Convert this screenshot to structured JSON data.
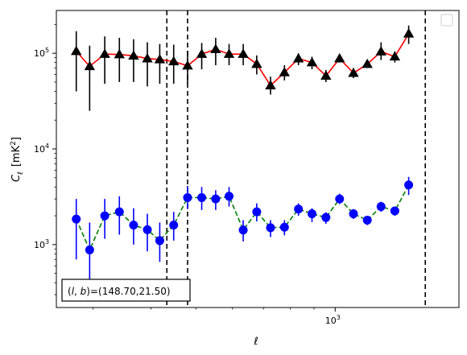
{
  "chart_data": {
    "type": "scatter",
    "xlabel": "ℓ",
    "ylabel_main": "C",
    "ylabel_sub": "ℓ",
    "ylabel_unit": "[mK",
    "ylabel_unit_sup": "2",
    "ylabel_unit_close": "]",
    "xscale": "log",
    "yscale": "log",
    "xlim": [
      250,
      1850
    ],
    "ylim": [
      220,
      280000
    ],
    "x_ticks": [
      {
        "value": 1000,
        "label": "10",
        "sup": "3"
      }
    ],
    "y_ticks": [
      {
        "value": 1000,
        "label": "10",
        "sup": "3"
      },
      {
        "value": 10000,
        "label": "10",
        "sup": "4"
      },
      {
        "value": 100000,
        "label": "10",
        "sup": "5"
      }
    ],
    "grid": false,
    "legend": "top-right (empty)",
    "vlines": [
      433,
      480,
      1565
    ],
    "x": [
      276,
      295,
      318,
      342,
      367,
      393,
      418,
      448,
      480,
      515,
      552,
      590,
      633,
      677,
      725,
      777,
      833,
      891,
      955,
      1022,
      1095,
      1173,
      1256,
      1345,
      1441,
      1543,
      1652,
      1770
    ],
    "series": [
      {
        "color": "#000000",
        "marker": "triangle",
        "line_color": "#ff0000",
        "line_style": "solid",
        "values": [
          105000,
          73000,
          98000,
          97000,
          94000,
          88000,
          86000,
          82000,
          74000,
          98000,
          110000,
          98000,
          98000,
          77000,
          46000,
          63000,
          88000,
          80000,
          58000,
          88000,
          62000,
          77000,
          104000,
          92000,
          160000
        ],
        "x_index_start": 0,
        "err_low": [
          40000,
          25000,
          48000,
          50000,
          50000,
          45000,
          48000,
          48000,
          48000,
          68000,
          75000,
          75000,
          75000,
          60000,
          37000,
          52000,
          75000,
          68000,
          50000,
          80000,
          55000,
          70000,
          85000,
          80000,
          125000
        ],
        "err_high": [
          170000,
          120000,
          150000,
          145000,
          140000,
          130000,
          125000,
          123000,
          105000,
          128000,
          145000,
          125000,
          125000,
          95000,
          57000,
          75000,
          100000,
          92000,
          67000,
          97000,
          70000,
          85000,
          130000,
          105000,
          195000
        ]
      },
      {
        "color": "#0000ff",
        "marker": "circle",
        "line_color": "#008000",
        "line_style": "dashed",
        "values": [
          1850,
          880,
          2000,
          2200,
          1600,
          1430,
          1100,
          1600,
          3100,
          3100,
          3000,
          3200,
          1420,
          2200,
          1500,
          1520,
          2350,
          2100,
          1920,
          3000,
          2100,
          1800,
          2500,
          2250,
          4200
        ],
        "err_low": [
          700,
          420,
          1150,
          1270,
          1000,
          850,
          660,
          1100,
          2350,
          2300,
          2300,
          2500,
          1080,
          1750,
          1200,
          1250,
          2000,
          1720,
          1650,
          2650,
          1850,
          1600,
          2200,
          2000,
          3300
        ],
        "err_high": [
          3000,
          1700,
          3000,
          3200,
          2400,
          2100,
          1700,
          2200,
          4100,
          4000,
          3700,
          4000,
          1800,
          2700,
          1800,
          1800,
          2700,
          2400,
          2180,
          3400,
          2350,
          1980,
          2800,
          2500,
          5100
        ]
      }
    ],
    "annotation": {
      "prefix": "(",
      "l": "l",
      "sep": ", ",
      "b": "b",
      "rest": ")=(148.70,21.50)"
    }
  }
}
